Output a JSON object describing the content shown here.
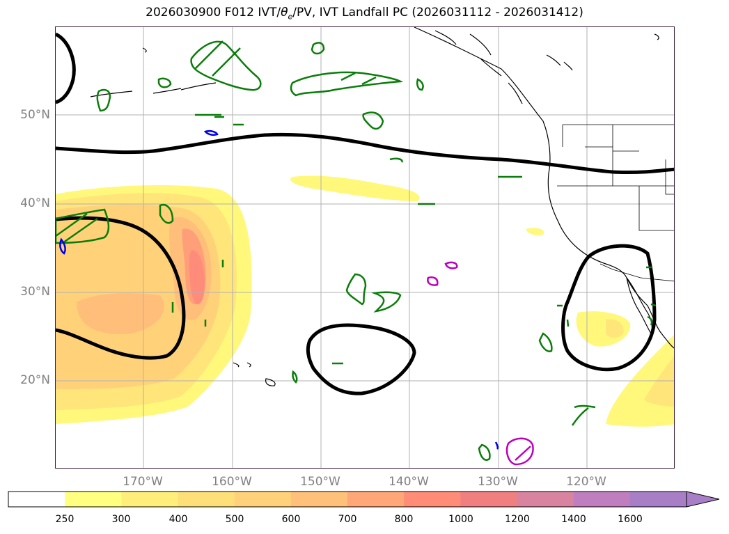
{
  "title": {
    "prefix": "2026030900 F012 IVT/",
    "theta": "θ",
    "theta_sub": "e",
    "suffix": "/PV, IVT Landfall PC (2026031112 - 2026031412)"
  },
  "axes": {
    "lat_labels": [
      "50°N",
      "40°N",
      "30°N",
      "20°N"
    ],
    "lon_labels": [
      "170°W",
      "160°W",
      "150°W",
      "140°W",
      "130°W",
      "120°W"
    ]
  },
  "colorbar": {
    "ticks": [
      "250",
      "300",
      "400",
      "500",
      "600",
      "700",
      "800",
      "1000",
      "1200",
      "1400",
      "1600"
    ],
    "colors": [
      "#ffffff",
      "#ffff80",
      "#ffef7a",
      "#ffdf78",
      "#ffd27a",
      "#ffc079",
      "#ffa777",
      "#ff8c76",
      "#f08080",
      "#d884a0",
      "#bf7fbf",
      "#a87fc7"
    ]
  },
  "colors": {
    "ivt_shades": [
      "#fff87a",
      "#ffe57a",
      "#ffd27a",
      "#ffbf7a",
      "#ff9f7a",
      "#ff8c7a"
    ],
    "theta_contour": "#000000",
    "pv_contour": "#008000",
    "pv_neg_contour": "#0000ff",
    "pc_contour": "#bb00bb"
  }
}
